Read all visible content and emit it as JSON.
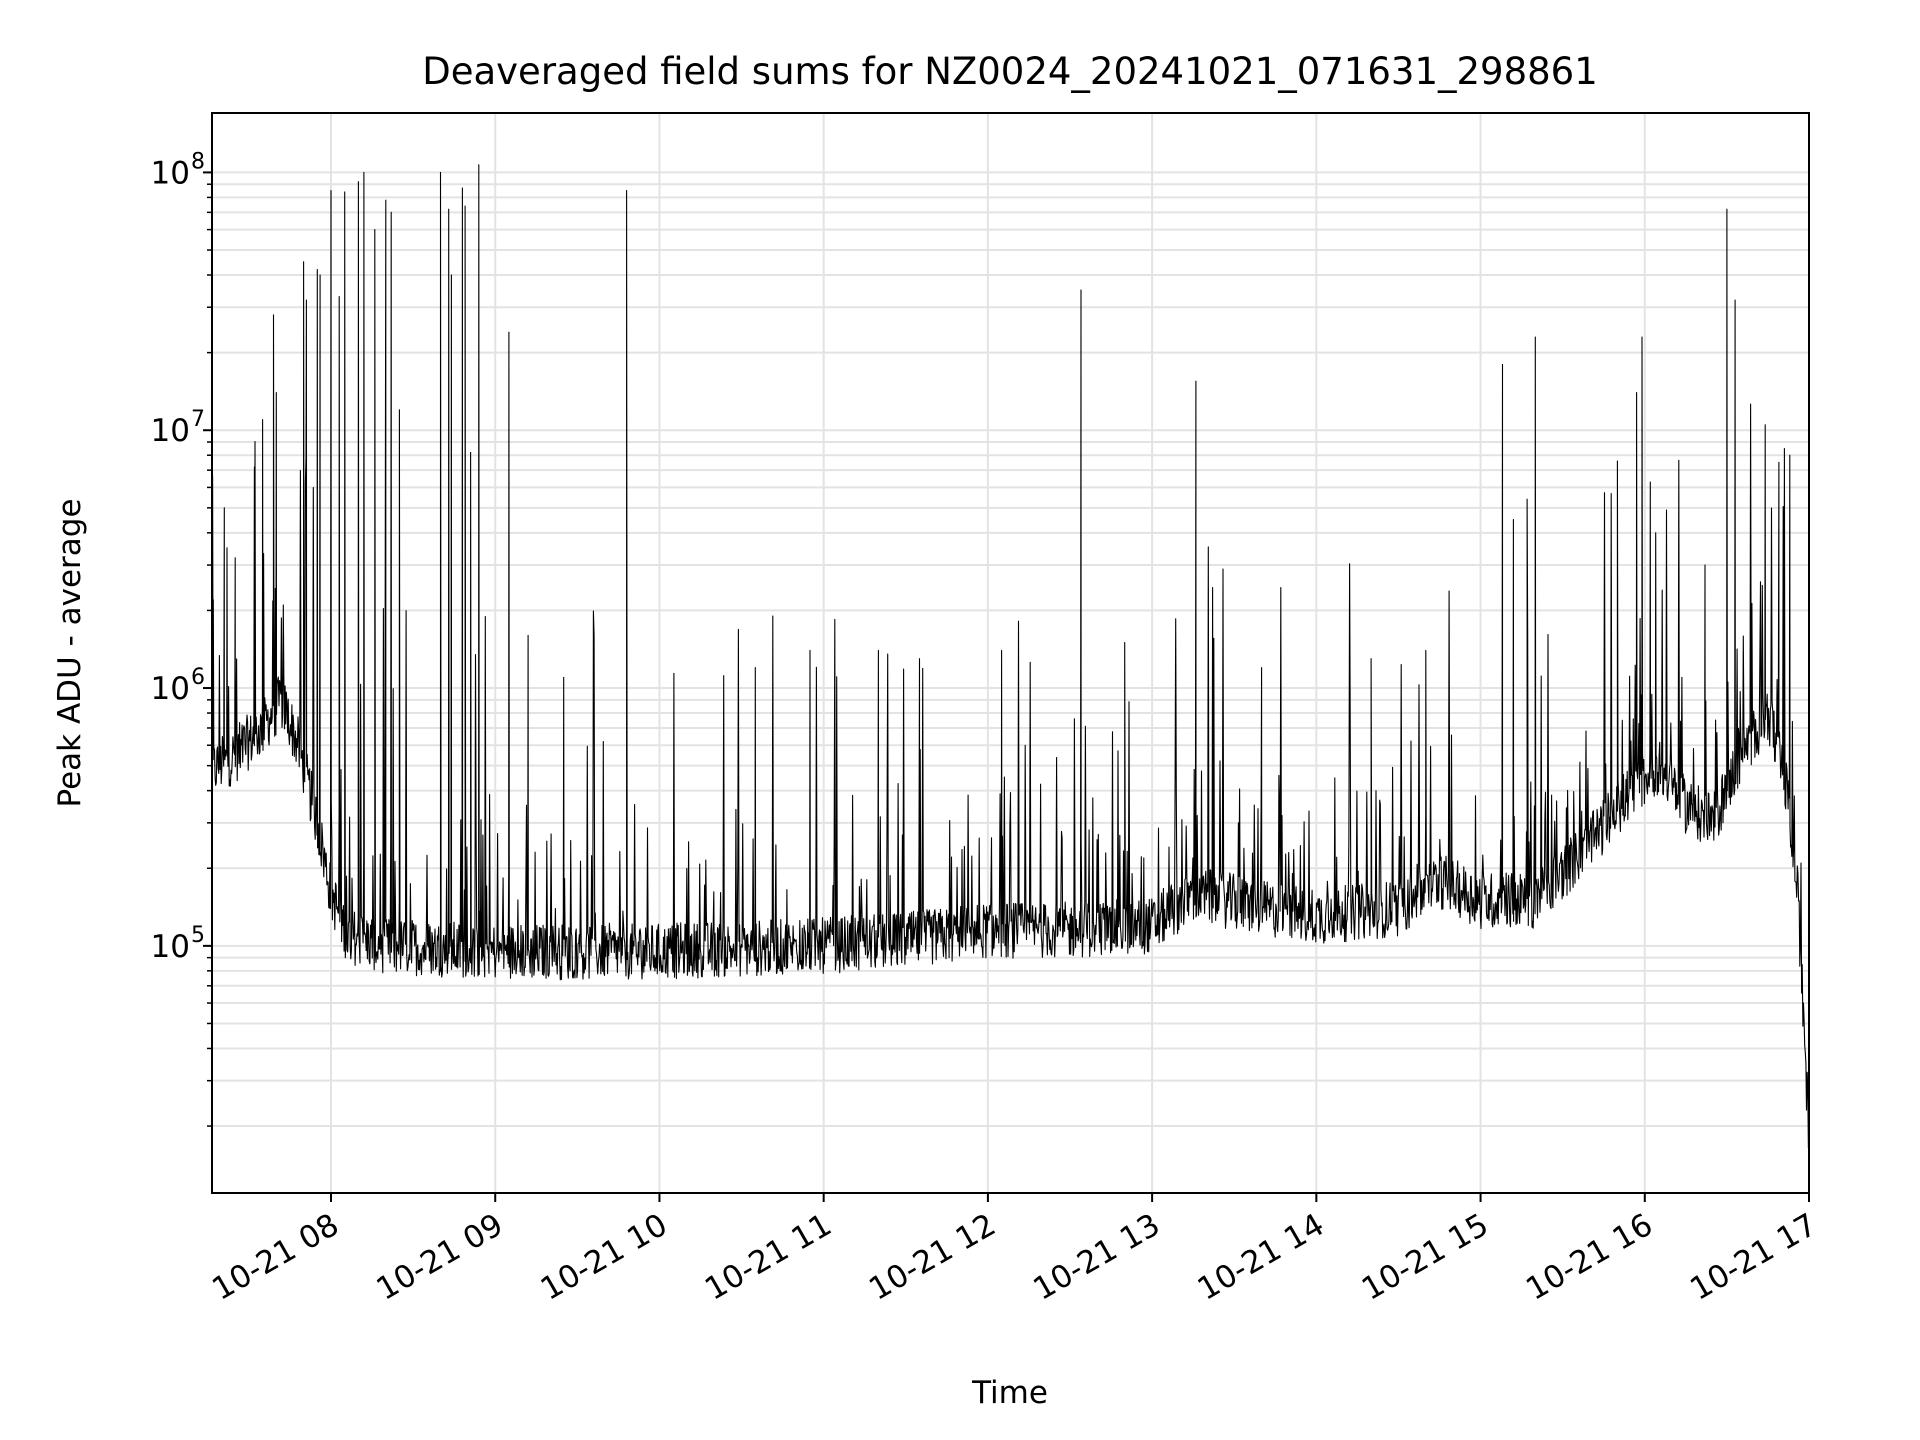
{
  "chart_data": {
    "type": "line",
    "title": "Deaveraged field sums for NZ0024_20241021_071631_298861",
    "xlabel": "Time",
    "ylabel": "Peak ADU - average",
    "yscale": "log",
    "ylim": [
      11000,
      170000000
    ],
    "xlim": [
      "2024-10-21 07:16:31",
      "2024-10-21 17:00:00"
    ],
    "grid": true,
    "x_ticks": [
      {
        "t": "2024-10-21 08:00",
        "label": "10-21 08"
      },
      {
        "t": "2024-10-21 09:00",
        "label": "10-21 09"
      },
      {
        "t": "2024-10-21 10:00",
        "label": "10-21 10"
      },
      {
        "t": "2024-10-21 11:00",
        "label": "10-21 11"
      },
      {
        "t": "2024-10-21 12:00",
        "label": "10-21 12"
      },
      {
        "t": "2024-10-21 13:00",
        "label": "10-21 13"
      },
      {
        "t": "2024-10-21 14:00",
        "label": "10-21 14"
      },
      {
        "t": "2024-10-21 15:00",
        "label": "10-21 15"
      },
      {
        "t": "2024-10-21 16:00",
        "label": "10-21 16"
      },
      {
        "t": "2024-10-21 17:00",
        "label": "10-21 17"
      }
    ],
    "y_ticks": [
      {
        "v": 100000,
        "base": "10",
        "exp": "5"
      },
      {
        "v": 1000000,
        "base": "10",
        "exp": "6"
      },
      {
        "v": 10000000,
        "base": "10",
        "exp": "7"
      },
      {
        "v": 100000000,
        "base": "10",
        "exp": "8"
      }
    ],
    "series": [
      {
        "color": "#000000",
        "baseline": [
          [
            "2024-10-21 07:16:31",
            480000
          ],
          [
            "2024-10-21 07:25",
            550000
          ],
          [
            "2024-10-21 07:35",
            700000
          ],
          [
            "2024-10-21 07:42",
            900000
          ],
          [
            "2024-10-21 07:48",
            600000
          ],
          [
            "2024-10-21 07:55",
            300000
          ],
          [
            "2024-10-21 08:00",
            160000
          ],
          [
            "2024-10-21 08:06",
            110000
          ],
          [
            "2024-10-21 08:20",
            100000
          ],
          [
            "2024-10-21 09:00",
            95000
          ],
          [
            "2024-10-21 10:00",
            95000
          ],
          [
            "2024-10-21 11:00",
            100000
          ],
          [
            "2024-10-21 11:30",
            105000
          ],
          [
            "2024-10-21 12:00",
            115000
          ],
          [
            "2024-10-21 12:30",
            115000
          ],
          [
            "2024-10-21 13:00",
            120000
          ],
          [
            "2024-10-21 13:15",
            160000
          ],
          [
            "2024-10-21 13:40",
            140000
          ],
          [
            "2024-10-21 14:00",
            130000
          ],
          [
            "2024-10-21 14:30",
            140000
          ],
          [
            "2024-10-21 14:45",
            180000
          ],
          [
            "2024-10-21 15:00",
            150000
          ],
          [
            "2024-10-21 15:20",
            150000
          ],
          [
            "2024-10-21 15:40",
            250000
          ],
          [
            "2024-10-21 15:55",
            400000
          ],
          [
            "2024-10-21 16:05",
            500000
          ],
          [
            "2024-10-21 16:15",
            350000
          ],
          [
            "2024-10-21 16:25",
            300000
          ],
          [
            "2024-10-21 16:35",
            550000
          ],
          [
            "2024-10-21 16:45",
            800000
          ],
          [
            "2024-10-21 16:52",
            400000
          ],
          [
            "2024-10-21 16:56",
            150000
          ],
          [
            "2024-10-21 17:00",
            18000
          ]
        ],
        "peaks": [
          [
            "2024-10-21 07:17",
            2200000
          ],
          [
            "2024-10-21 07:21",
            5000000
          ],
          [
            "2024-10-21 07:22",
            3500000
          ],
          [
            "2024-10-21 07:25",
            3200000
          ],
          [
            "2024-10-21 07:32",
            7200000
          ],
          [
            "2024-10-21 07:35",
            11000000
          ],
          [
            "2024-10-21 07:39",
            28000000
          ],
          [
            "2024-10-21 07:40",
            14000000
          ],
          [
            "2024-10-21 07:50",
            45000000
          ],
          [
            "2024-10-21 07:51",
            32000000
          ],
          [
            "2024-10-21 07:55",
            42000000
          ],
          [
            "2024-10-21 07:56",
            40000000
          ],
          [
            "2024-10-21 08:00",
            85000000
          ],
          [
            "2024-10-21 08:03",
            33000000
          ],
          [
            "2024-10-21 08:05",
            84000000
          ],
          [
            "2024-10-21 08:10",
            92000000
          ],
          [
            "2024-10-21 08:12",
            100000000
          ],
          [
            "2024-10-21 08:16",
            60000000
          ],
          [
            "2024-10-21 08:20",
            78000000
          ],
          [
            "2024-10-21 08:22",
            70000000
          ],
          [
            "2024-10-21 08:25",
            12000000
          ],
          [
            "2024-10-21 08:40",
            100000000
          ],
          [
            "2024-10-21 08:43",
            72000000
          ],
          [
            "2024-10-21 08:44",
            40000000
          ],
          [
            "2024-10-21 08:48",
            87000000
          ],
          [
            "2024-10-21 08:49",
            74000000
          ],
          [
            "2024-10-21 08:51",
            8200000
          ],
          [
            "2024-10-21 08:54",
            107000000
          ],
          [
            "2024-10-21 09:05",
            24000000
          ],
          [
            "2024-10-21 09:12",
            1600000
          ],
          [
            "2024-10-21 09:25",
            1100000
          ],
          [
            "2024-10-21 09:48",
            85000000
          ],
          [
            "2024-10-21 10:35",
            1200000
          ],
          [
            "2024-10-21 10:55",
            1400000
          ],
          [
            "2024-10-21 11:20",
            1400000
          ],
          [
            "2024-10-21 11:35",
            1300000
          ],
          [
            "2024-10-21 12:05",
            1400000
          ],
          [
            "2024-10-21 12:34",
            35000000
          ],
          [
            "2024-10-21 12:50",
            1500000
          ],
          [
            "2024-10-21 13:16",
            15500000
          ],
          [
            "2024-10-21 13:40",
            1200000
          ],
          [
            "2024-10-21 14:20",
            1300000
          ],
          [
            "2024-10-21 14:40",
            1400000
          ],
          [
            "2024-10-21 15:08",
            18000000
          ],
          [
            "2024-10-21 15:12",
            4500000
          ],
          [
            "2024-10-21 15:17",
            5400000
          ],
          [
            "2024-10-21 15:20",
            23000000
          ],
          [
            "2024-10-21 15:50",
            7600000
          ],
          [
            "2024-10-21 15:57",
            14000000
          ],
          [
            "2024-10-21 15:59",
            23000000
          ],
          [
            "2024-10-21 16:02",
            6300000
          ],
          [
            "2024-10-21 16:04",
            4000000
          ],
          [
            "2024-10-21 16:22",
            3000000
          ],
          [
            "2024-10-21 16:30",
            72000000
          ],
          [
            "2024-10-21 16:33",
            32000000
          ],
          [
            "2024-10-21 16:44",
            10500000
          ],
          [
            "2024-10-21 16:49",
            7500000
          ],
          [
            "2024-10-21 16:53",
            8000000
          ]
        ]
      }
    ]
  }
}
